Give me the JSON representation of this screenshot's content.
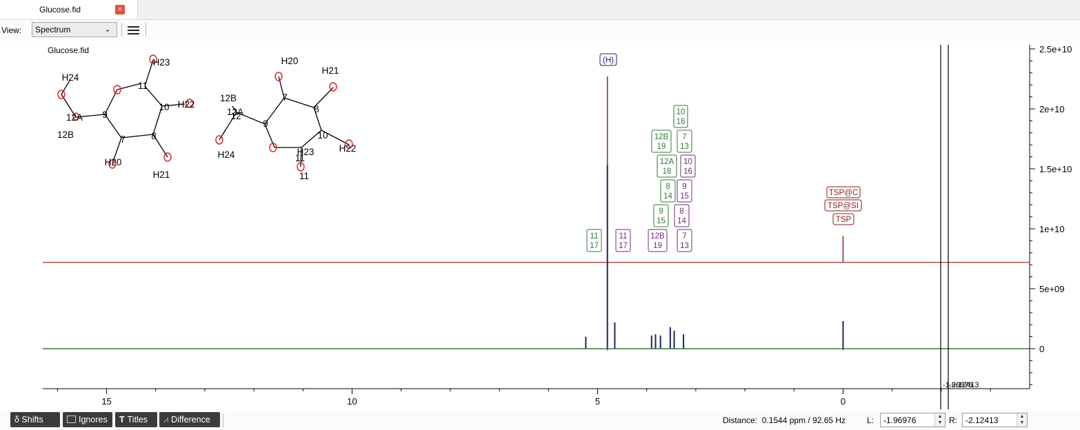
{
  "tabs": [
    {
      "label": "Glucose.fid",
      "close_icon": "close-icon"
    }
  ],
  "toolbar": {
    "view_label": "View:",
    "view_value": "Spectrum",
    "menu_icon": "hamburger-menu-icon"
  },
  "spectrum": {
    "title": "Glucose.fid",
    "x_ticks": [
      "15",
      "10",
      "5",
      "0"
    ],
    "y_ticks": [
      "2.5e+10",
      "2e+10",
      "1.5e+10",
      "1e+10",
      "5e+09",
      "0"
    ],
    "cursor_readout": "-1.96976",
    "cursor_readout_overlap": "-2.12413"
  },
  "molecule1": {
    "atoms": [
      "H23",
      "H24",
      "11",
      "10",
      "H22",
      "12A",
      "9",
      "12B",
      "7",
      "8",
      "H20",
      "H21"
    ]
  },
  "molecule2": {
    "atoms": [
      "H20",
      "H21",
      "12B",
      "7",
      "8",
      "12A",
      "12",
      "9",
      "10",
      "H22",
      "H24",
      "H23",
      "11",
      "11"
    ]
  },
  "peak_labels": {
    "h_peak": "(H)",
    "green": [
      [
        "11",
        "17"
      ],
      [
        "9",
        "15"
      ],
      [
        "8",
        "14"
      ],
      [
        "12A",
        "18"
      ],
      [
        "12B",
        "19"
      ],
      [
        "7",
        "13"
      ],
      [
        "10",
        "16"
      ]
    ],
    "purple": [
      [
        "11",
        "17"
      ],
      [
        "12B",
        "19"
      ],
      [
        "8",
        "14"
      ],
      [
        "7",
        "13"
      ],
      [
        "9",
        "15"
      ],
      [
        "10",
        "16"
      ]
    ],
    "tsp": [
      "TSP@C",
      "TSP@SI",
      "TSP"
    ]
  },
  "chart_data": {
    "type": "line",
    "xlim": [
      16.3,
      -3.8
    ],
    "ylim": [
      -3300000000.0,
      25000000000.0
    ],
    "x_ticks": [
      15,
      10,
      5,
      0
    ],
    "y_ticks": [
      0,
      5000000000.0,
      10000000000.0,
      15000000000.0,
      20000000000.0,
      25000000000.0
    ],
    "cursors_ppm": [
      -1.96976,
      -2.12413
    ],
    "series": [
      {
        "color": "#9a2e2e",
        "baseline": 7200000000.0,
        "peaks": [
          [
            4.8,
            22700000000.0
          ],
          [
            0.0,
            9400000000.0
          ]
        ]
      },
      {
        "color": "#1c2466",
        "baseline": 0,
        "peaks": [
          [
            5.24,
            1000000000.0
          ],
          [
            4.8,
            15300000000.0
          ],
          [
            4.65,
            2200000000.0
          ],
          [
            3.9,
            1100000000.0
          ],
          [
            3.82,
            1200000000.0
          ],
          [
            3.72,
            1100000000.0
          ],
          [
            3.52,
            1800000000.0
          ],
          [
            3.44,
            1500000000.0
          ],
          [
            3.25,
            1200000000.0
          ],
          [
            0.0,
            2300000000.0
          ]
        ]
      },
      {
        "color": "#2f7a2f",
        "baseline": 0,
        "peaks": [
          [
            4.8,
            -150000000.0
          ],
          [
            0.0,
            -150000000.0
          ]
        ]
      }
    ]
  },
  "colors": {
    "red": "#9a2e2e",
    "navy": "#1c2466",
    "green": "#2f7a2f",
    "purple": "#6b2a7a",
    "atom_red": "#e02020",
    "tsp": "#8b1a1a"
  },
  "bottom": {
    "buttons": [
      {
        "label": "δ Shifts",
        "icon": "shifts-icon"
      },
      {
        "label": "Ignores",
        "icon": "ignores-icon"
      },
      {
        "label": "Titles",
        "icon": "titles-icon"
      },
      {
        "label": "Difference",
        "icon": "difference-icon"
      }
    ],
    "distance": "Distance:  0.1544 ppm / 92.65 Hz",
    "l_label": "L:",
    "l_value": "-1.96976",
    "r_label": "R:",
    "r_value": "-2.12413"
  }
}
